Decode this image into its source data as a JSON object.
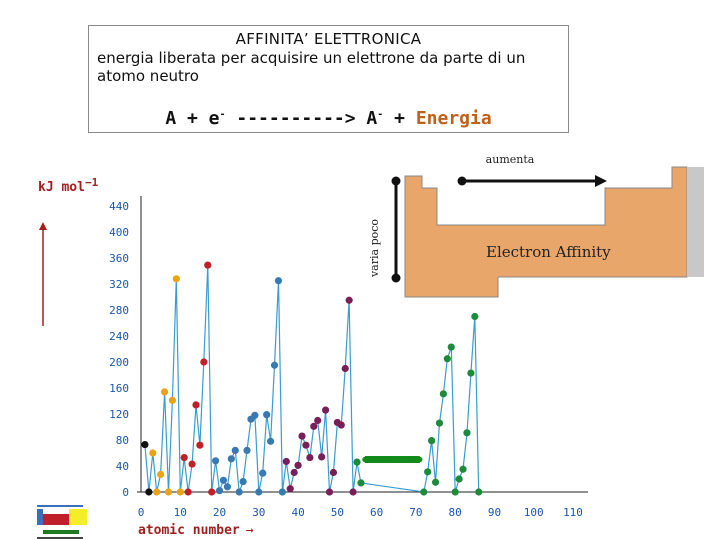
{
  "header": {
    "title": "AFFINITA’ ELETTRONICA",
    "line1": "energia liberata per acquisire un elettrone da parte di un",
    "line2": "atomo neutro",
    "equation": {
      "part1": "A + e",
      "sup1": "-",
      "part2": " ----------> A",
      "sup2": "-",
      "part3": " + ",
      "energy": "Energia"
    }
  },
  "inset": {
    "label_right": "aumenta",
    "label_down": "varia poco",
    "title": "Electron Affinity",
    "panel_color": "#e8a66a",
    "arrow_color": "#111111"
  },
  "chart_data": {
    "type": "line",
    "ylabel": "kJ mol",
    "ylabel_sup": "−1",
    "xlabel": "atomic number",
    "xlabel_arrow": "→",
    "ylim": [
      0,
      440
    ],
    "xlim": [
      0,
      110
    ],
    "yticks": [
      0,
      40,
      80,
      120,
      160,
      200,
      240,
      280,
      320,
      360,
      400,
      440
    ],
    "xticks": [
      0,
      10,
      20,
      30,
      40,
      50,
      60,
      70,
      80,
      90,
      100,
      110
    ],
    "line_color": "#3a9ccf",
    "lanthanide_color": "#138a1b",
    "colors": {
      "s": "#e8a317",
      "p": "#c0202a",
      "d": "#3a78b0",
      "f": "#7a1e5a",
      "g": "#1e8a3c",
      "k": "#111111"
    },
    "points": [
      [
        1,
        73,
        "k"
      ],
      [
        2,
        0,
        "k"
      ],
      [
        3,
        60,
        "s"
      ],
      [
        4,
        0,
        "s"
      ],
      [
        5,
        27,
        "s"
      ],
      [
        6,
        154,
        "s"
      ],
      [
        7,
        0,
        "s"
      ],
      [
        8,
        141,
        "s"
      ],
      [
        9,
        328,
        "s"
      ],
      [
        10,
        0,
        "s"
      ],
      [
        11,
        53,
        "p"
      ],
      [
        12,
        0,
        "p"
      ],
      [
        13,
        43,
        "p"
      ],
      [
        14,
        134,
        "p"
      ],
      [
        15,
        72,
        "p"
      ],
      [
        16,
        200,
        "p"
      ],
      [
        17,
        349,
        "p"
      ],
      [
        18,
        0,
        "p"
      ],
      [
        19,
        48,
        "d"
      ],
      [
        20,
        2,
        "d"
      ],
      [
        21,
        18,
        "d"
      ],
      [
        22,
        8,
        "d"
      ],
      [
        23,
        51,
        "d"
      ],
      [
        24,
        64,
        "d"
      ],
      [
        25,
        0,
        "d"
      ],
      [
        26,
        16,
        "d"
      ],
      [
        27,
        64,
        "d"
      ],
      [
        28,
        112,
        "d"
      ],
      [
        29,
        118,
        "d"
      ],
      [
        30,
        0,
        "d"
      ],
      [
        31,
        29,
        "d"
      ],
      [
        32,
        119,
        "d"
      ],
      [
        33,
        78,
        "d"
      ],
      [
        34,
        195,
        "d"
      ],
      [
        35,
        325,
        "d"
      ],
      [
        36,
        0,
        "d"
      ],
      [
        37,
        47,
        "f"
      ],
      [
        38,
        5,
        "f"
      ],
      [
        39,
        30,
        "f"
      ],
      [
        40,
        41,
        "f"
      ],
      [
        41,
        86,
        "f"
      ],
      [
        42,
        72,
        "f"
      ],
      [
        43,
        53,
        "f"
      ],
      [
        44,
        101,
        "f"
      ],
      [
        45,
        110,
        "f"
      ],
      [
        46,
        54,
        "f"
      ],
      [
        47,
        126,
        "f"
      ],
      [
        48,
        0,
        "f"
      ],
      [
        49,
        30,
        "f"
      ],
      [
        50,
        107,
        "f"
      ],
      [
        51,
        103,
        "f"
      ],
      [
        52,
        190,
        "f"
      ],
      [
        53,
        295,
        "f"
      ],
      [
        54,
        0,
        "f"
      ],
      [
        55,
        46,
        "g"
      ],
      [
        56,
        14,
        "g"
      ],
      [
        72,
        0,
        "g"
      ],
      [
        73,
        31,
        "g"
      ],
      [
        74,
        79,
        "g"
      ],
      [
        75,
        15,
        "g"
      ],
      [
        76,
        106,
        "g"
      ],
      [
        77,
        151,
        "g"
      ],
      [
        78,
        205,
        "g"
      ],
      [
        79,
        223,
        "g"
      ],
      [
        80,
        0,
        "g"
      ],
      [
        81,
        20,
        "g"
      ],
      [
        82,
        35,
        "g"
      ],
      [
        83,
        91,
        "g"
      ],
      [
        84,
        183,
        "g"
      ],
      [
        85,
        270,
        "g"
      ],
      [
        86,
        0,
        "g"
      ]
    ],
    "lanthanide_band": {
      "x_start": 57,
      "x_end": 71,
      "y": 50
    }
  }
}
